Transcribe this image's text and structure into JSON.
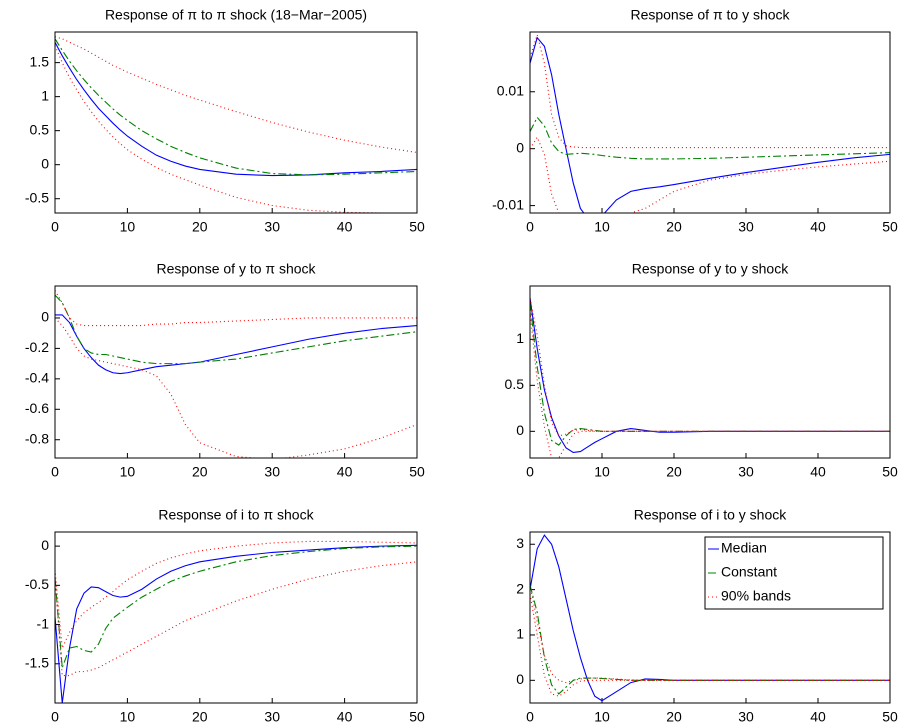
{
  "chart_data": [
    {
      "type": "line",
      "title": "Response of π to π shock (18−Mar−2005)",
      "x": [
        0,
        1,
        2,
        3,
        4,
        5,
        6,
        7,
        8,
        9,
        10,
        12,
        14,
        16,
        18,
        20,
        25,
        30,
        35,
        40,
        45,
        50
      ],
      "xlim": [
        0,
        50
      ],
      "xticks": [
        0,
        10,
        20,
        30,
        40,
        50
      ],
      "ylim": [
        -0.71,
        1.95
      ],
      "yticks": [
        -0.5,
        0,
        0.5,
        1,
        1.5
      ],
      "series": [
        {
          "color": "#0000ff",
          "style": "solid",
          "values": [
            1.8,
            1.6,
            1.42,
            1.25,
            1.1,
            0.96,
            0.83,
            0.72,
            0.61,
            0.51,
            0.42,
            0.27,
            0.14,
            0.05,
            -0.02,
            -0.07,
            -0.14,
            -0.16,
            -0.15,
            -0.12,
            -0.1,
            -0.07
          ]
        },
        {
          "color": "#008000",
          "style": "dashdot",
          "values": [
            1.85,
            1.68,
            1.52,
            1.38,
            1.25,
            1.13,
            1.02,
            0.92,
            0.82,
            0.73,
            0.65,
            0.5,
            0.38,
            0.27,
            0.18,
            0.1,
            -0.05,
            -0.13,
            -0.15,
            -0.14,
            -0.12,
            -0.1
          ]
        },
        {
          "color": "#ff0000",
          "style": "dotted",
          "values": [
            1.88,
            1.85,
            1.8,
            1.75,
            1.7,
            1.64,
            1.58,
            1.52,
            1.46,
            1.41,
            1.36,
            1.27,
            1.18,
            1.1,
            1.02,
            0.95,
            0.78,
            0.62,
            0.48,
            0.36,
            0.26,
            0.18
          ],
          "lower": [
            1.75,
            1.5,
            1.28,
            1.1,
            0.93,
            0.78,
            0.64,
            0.52,
            0.41,
            0.31,
            0.22,
            0.08,
            -0.04,
            -0.14,
            -0.22,
            -0.3,
            -0.48,
            -0.6,
            -0.67,
            -0.7,
            -0.71,
            -0.71
          ]
        }
      ]
    },
    {
      "type": "line",
      "title": "Response of π to y shock",
      "x": [
        0,
        1,
        2,
        3,
        4,
        5,
        6,
        7,
        8,
        9,
        10,
        12,
        14,
        16,
        18,
        20,
        25,
        30,
        35,
        40,
        45,
        50
      ],
      "xlim": [
        0,
        50
      ],
      "xticks": [
        0,
        10,
        20,
        30,
        40,
        50
      ],
      "ylim": [
        -0.0113,
        0.0205
      ],
      "yticks": [
        -0.01,
        0,
        0.01
      ],
      "series": [
        {
          "color": "#0000ff",
          "style": "solid",
          "values": [
            0.015,
            0.0195,
            0.018,
            0.013,
            0.006,
            0.0,
            -0.006,
            -0.0105,
            -0.0122,
            -0.0125,
            -0.0118,
            -0.009,
            -0.0075,
            -0.007,
            -0.0067,
            -0.0063,
            -0.0052,
            -0.0042,
            -0.0033,
            -0.0024,
            -0.0016,
            -0.001
          ]
        },
        {
          "color": "#008000",
          "style": "dashdot",
          "values": [
            0.003,
            0.0055,
            0.004,
            0.001,
            -0.0005,
            -0.001,
            -0.0009,
            -0.0008,
            -0.0009,
            -0.001,
            -0.0012,
            -0.0015,
            -0.0017,
            -0.0018,
            -0.0018,
            -0.0018,
            -0.0017,
            -0.0015,
            -0.0013,
            -0.0011,
            -0.0009,
            -0.0007
          ]
        },
        {
          "color": "#ff0000",
          "style": "dotted",
          "values": [
            0.016,
            0.02,
            0.015,
            0.006,
            0.002,
            0.0005,
            0.0003,
            0.0002,
            0.0002,
            0.0002,
            0.0002,
            0.0002,
            0.0002,
            0.0002,
            0.0002,
            0.0002,
            0.0002,
            0.0002,
            0.0002,
            0.0002,
            0.0002,
            0.0002
          ],
          "lower": [
            0.0,
            0.002,
            -0.001,
            -0.008,
            -0.0113,
            -0.0113,
            -0.0113,
            -0.0113,
            -0.0113,
            -0.0113,
            -0.0113,
            -0.0113,
            -0.0113,
            -0.0105,
            -0.009,
            -0.0075,
            -0.0055,
            -0.0045,
            -0.0038,
            -0.0032,
            -0.0027,
            -0.0022
          ]
        }
      ]
    },
    {
      "type": "line",
      "title": "Response of y to π shock",
      "x": [
        0,
        1,
        2,
        3,
        4,
        5,
        6,
        7,
        8,
        9,
        10,
        12,
        14,
        16,
        18,
        20,
        25,
        30,
        35,
        40,
        45,
        50
      ],
      "xlim": [
        0,
        50
      ],
      "xticks": [
        0,
        10,
        20,
        30,
        40,
        50
      ],
      "ylim": [
        -0.92,
        0.21
      ],
      "yticks": [
        -0.8,
        -0.6,
        -0.4,
        -0.2,
        0
      ],
      "series": [
        {
          "color": "#0000ff",
          "style": "solid",
          "values": [
            0.02,
            0.02,
            -0.03,
            -0.12,
            -0.2,
            -0.26,
            -0.31,
            -0.34,
            -0.36,
            -0.365,
            -0.36,
            -0.34,
            -0.32,
            -0.31,
            -0.3,
            -0.29,
            -0.24,
            -0.19,
            -0.14,
            -0.1,
            -0.07,
            -0.05
          ]
        },
        {
          "color": "#008000",
          "style": "dashdot",
          "values": [
            0.15,
            0.1,
            0.0,
            -0.12,
            -0.2,
            -0.23,
            -0.24,
            -0.24,
            -0.25,
            -0.26,
            -0.27,
            -0.29,
            -0.3,
            -0.3,
            -0.3,
            -0.29,
            -0.27,
            -0.23,
            -0.19,
            -0.15,
            -0.12,
            -0.09
          ]
        },
        {
          "color": "#ff0000",
          "style": "dotted",
          "values": [
            0.18,
            0.1,
            0.0,
            -0.04,
            -0.05,
            -0.05,
            -0.05,
            -0.05,
            -0.05,
            -0.05,
            -0.05,
            -0.05,
            -0.04,
            -0.04,
            -0.03,
            -0.03,
            -0.02,
            -0.01,
            0.0,
            0.0,
            0.0,
            0.0
          ],
          "lower": [
            0.0,
            -0.05,
            -0.12,
            -0.2,
            -0.25,
            -0.27,
            -0.28,
            -0.29,
            -0.3,
            -0.31,
            -0.32,
            -0.34,
            -0.38,
            -0.5,
            -0.7,
            -0.82,
            -0.91,
            -0.93,
            -0.9,
            -0.86,
            -0.79,
            -0.7
          ]
        }
      ]
    },
    {
      "type": "line",
      "title": "Response of y to y shock",
      "x": [
        0,
        1,
        2,
        3,
        4,
        5,
        6,
        7,
        8,
        9,
        10,
        12,
        14,
        16,
        18,
        20,
        25,
        30,
        35,
        40,
        45,
        50
      ],
      "xlim": [
        0,
        50
      ],
      "xticks": [
        0,
        10,
        20,
        30,
        40,
        50
      ],
      "ylim": [
        -0.29,
        1.58
      ],
      "yticks": [
        0,
        0.5,
        1
      ],
      "series": [
        {
          "color": "#0000ff",
          "style": "solid",
          "values": [
            1.45,
            0.9,
            0.45,
            0.15,
            -0.05,
            -0.18,
            -0.23,
            -0.22,
            -0.17,
            -0.12,
            -0.08,
            0.0,
            0.03,
            0.01,
            -0.01,
            -0.01,
            0,
            0,
            0,
            0,
            0,
            0
          ]
        },
        {
          "color": "#008000",
          "style": "dashdot",
          "values": [
            1.4,
            0.7,
            0.2,
            -0.1,
            -0.15,
            -0.05,
            0.02,
            0.03,
            0.02,
            0.01,
            0,
            0,
            0,
            0,
            0,
            0,
            0,
            0,
            0,
            0,
            0,
            0
          ]
        },
        {
          "color": "#ff0000",
          "style": "dotted",
          "values": [
            1.45,
            1.05,
            0.5,
            0.1,
            -0.05,
            -0.03,
            0.01,
            0.02,
            0.01,
            0,
            0,
            0,
            0,
            0,
            0,
            0,
            0,
            0,
            0,
            0,
            0,
            0
          ],
          "lower": [
            1.3,
            0.55,
            0.05,
            -0.29,
            -0.29,
            -0.15,
            -0.03,
            0.0,
            0,
            0,
            0,
            0,
            0,
            0,
            0,
            0,
            0,
            0,
            0,
            0,
            0,
            0
          ]
        }
      ]
    },
    {
      "type": "line",
      "title": "Response of i to π shock",
      "x": [
        0,
        1,
        2,
        3,
        4,
        5,
        6,
        7,
        8,
        9,
        10,
        12,
        14,
        16,
        18,
        20,
        25,
        30,
        35,
        40,
        45,
        50
      ],
      "xlim": [
        0,
        50
      ],
      "xticks": [
        0,
        10,
        20,
        30,
        40,
        50
      ],
      "ylim": [
        -2.0,
        0.18
      ],
      "yticks": [
        -1.5,
        -1,
        -0.5,
        0
      ],
      "series": [
        {
          "color": "#0000ff",
          "style": "solid",
          "values": [
            -0.9,
            -2.0,
            -1.3,
            -0.8,
            -0.6,
            -0.52,
            -0.53,
            -0.58,
            -0.63,
            -0.65,
            -0.64,
            -0.55,
            -0.42,
            -0.32,
            -0.25,
            -0.2,
            -0.13,
            -0.08,
            -0.05,
            -0.02,
            0.0,
            0.01
          ]
        },
        {
          "color": "#008000",
          "style": "dashdot",
          "values": [
            -0.4,
            -1.55,
            -1.3,
            -1.28,
            -1.33,
            -1.35,
            -1.25,
            -1.05,
            -0.92,
            -0.85,
            -0.78,
            -0.65,
            -0.55,
            -0.45,
            -0.38,
            -0.32,
            -0.2,
            -0.12,
            -0.07,
            -0.03,
            -0.01,
            0.0
          ]
        },
        {
          "color": "#ff0000",
          "style": "dotted",
          "values": [
            -0.3,
            -1.3,
            -1.1,
            -0.95,
            -0.85,
            -0.78,
            -0.72,
            -0.65,
            -0.58,
            -0.5,
            -0.43,
            -0.32,
            -0.22,
            -0.15,
            -0.1,
            -0.06,
            0.0,
            0.04,
            0.06,
            0.06,
            0.05,
            0.04
          ],
          "lower": [
            -0.4,
            -1.65,
            -1.65,
            -1.6,
            -1.6,
            -1.58,
            -1.55,
            -1.5,
            -1.45,
            -1.4,
            -1.35,
            -1.25,
            -1.15,
            -1.05,
            -0.95,
            -0.88,
            -0.7,
            -0.55,
            -0.42,
            -0.32,
            -0.25,
            -0.2
          ]
        }
      ]
    },
    {
      "type": "line",
      "title": "Response of i to y shock",
      "x": [
        0,
        1,
        2,
        3,
        4,
        5,
        6,
        7,
        8,
        9,
        10,
        12,
        14,
        16,
        18,
        20,
        25,
        30,
        35,
        40,
        45,
        50
      ],
      "xlim": [
        0,
        50
      ],
      "xticks": [
        0,
        10,
        20,
        30,
        40,
        50
      ],
      "ylim": [
        -0.5,
        3.27
      ],
      "yticks": [
        0,
        1,
        2,
        3
      ],
      "legend": "upper right",
      "series": [
        {
          "name": "Median",
          "color": "#0000ff",
          "style": "solid",
          "values": [
            2.0,
            2.9,
            3.2,
            3.0,
            2.5,
            1.8,
            1.1,
            0.5,
            0.0,
            -0.35,
            -0.45,
            -0.25,
            -0.05,
            0.03,
            0.02,
            0.0,
            0,
            0,
            0,
            0,
            0,
            0
          ]
        },
        {
          "name": "Constant",
          "color": "#008000",
          "style": "dashdot",
          "values": [
            2.1,
            1.5,
            0.5,
            -0.1,
            -0.3,
            -0.15,
            0.0,
            0.05,
            0.05,
            0.05,
            0.04,
            0.02,
            0,
            0,
            0,
            0,
            0,
            0,
            0,
            0,
            0,
            0
          ]
        },
        {
          "name": "90% bands",
          "color": "#ff0000",
          "style": "dotted",
          "values": [
            2.1,
            1.3,
            0.55,
            0.15,
            0.0,
            -0.05,
            0.0,
            0.03,
            0.05,
            0.05,
            0.05,
            0.03,
            0.01,
            0,
            0,
            0,
            0,
            0,
            0,
            0,
            0,
            0
          ],
          "lower": [
            1.9,
            1.0,
            0.1,
            -0.3,
            -0.35,
            -0.25,
            -0.1,
            -0.02,
            0.0,
            0,
            0,
            0,
            0,
            0,
            0,
            0,
            0,
            0,
            0,
            0,
            0,
            0
          ]
        }
      ]
    }
  ]
}
